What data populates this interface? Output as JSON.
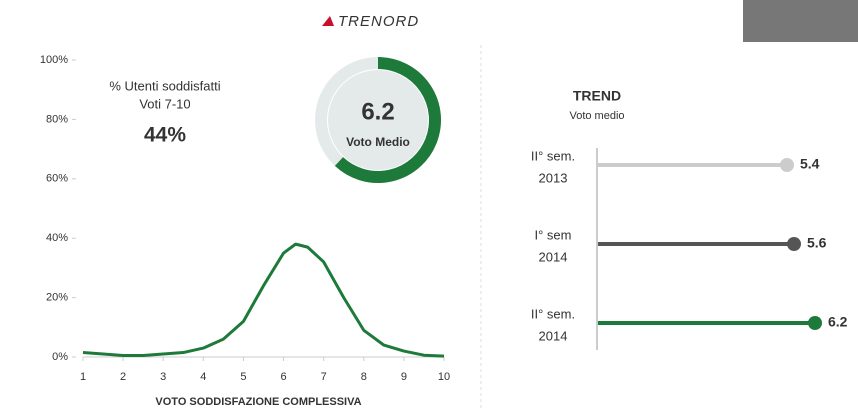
{
  "logo": "TRENORD",
  "chart_data": [
    {
      "type": "line",
      "x": [
        1,
        1.5,
        2,
        2.5,
        3,
        3.5,
        4,
        4.5,
        5,
        5.5,
        6,
        6.3,
        6.6,
        7,
        7.5,
        8,
        8.5,
        9,
        9.5,
        10
      ],
      "values": [
        1.5,
        1,
        0.5,
        0.5,
        1,
        1.5,
        3,
        6,
        12,
        24,
        35,
        38,
        37,
        32,
        20,
        9,
        4,
        2,
        0.6,
        0.3
      ],
      "color": "#1e7a3a",
      "xlim": [
        1,
        10
      ],
      "xticks": [
        1,
        2,
        3,
        4,
        5,
        6,
        7,
        8,
        9,
        10
      ],
      "ylim": [
        0,
        100
      ],
      "yticks": [
        {
          "value": 0,
          "label": "0%"
        },
        {
          "value": 20,
          "label": "20%"
        },
        {
          "value": 40,
          "label": "40%"
        },
        {
          "value": 60,
          "label": "60%"
        },
        {
          "value": 80,
          "label": "80%"
        },
        {
          "value": 100,
          "label": "100%"
        }
      ],
      "xlabel": "VOTO SODDISFAZIONE COMPLESSIVA",
      "annotation": {
        "title": "% Utenti soddisfatti",
        "subtitle": "Voti 7-10",
        "value": 44,
        "value_label": "44%"
      }
    },
    {
      "type": "gauge",
      "value": 6.2,
      "label": "Voto Medio",
      "lim": [
        0,
        10
      ],
      "color": "#1e7a3a",
      "track_color": "#e4eaea"
    },
    {
      "type": "lollipop",
      "title": "TREND",
      "subtitle": "Voto medio",
      "categories": [
        [
          "II° sem.",
          "2013"
        ],
        [
          "I° sem",
          "2014"
        ],
        [
          "II° sem.",
          "2014"
        ]
      ],
      "values": [
        5.4,
        5.6,
        6.2
      ],
      "colors": [
        "#cccccc",
        "#555555",
        "#1e7a3a"
      ],
      "xlim": [
        0,
        7.2
      ]
    }
  ]
}
